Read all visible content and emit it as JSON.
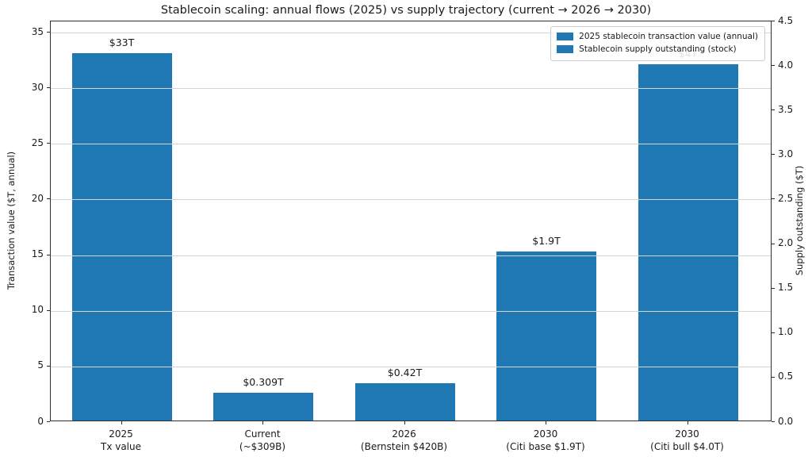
{
  "chart_data": {
    "type": "bar",
    "title": "Stablecoin scaling: annual flows (2025) vs supply trajectory (current → 2026 → 2030)",
    "categories": [
      "2025\nTx value",
      "Current\n(~$309B)",
      "2026\n(Bernstein $420B)",
      "2030\n(Citi base $1.9T)",
      "2030\n(Citi bull $4.0T)"
    ],
    "series": [
      {
        "name": "2025 stablecoin transaction value (annual)",
        "axis": "left",
        "values": [
          33,
          null,
          null,
          null,
          null
        ]
      },
      {
        "name": "Stablecoin supply outstanding (stock)",
        "axis": "right",
        "values": [
          null,
          0.309,
          0.42,
          1.9,
          4.0
        ]
      }
    ],
    "bar_value_labels": [
      "$33T",
      "$0.309T",
      "$0.42T",
      "$1.9T",
      "$4T"
    ],
    "bar_color": "#1f77b4",
    "grid": true,
    "left_axis": {
      "label": "Transaction value ($T, annual)",
      "ticks": [
        "0",
        "5",
        "10",
        "15",
        "20",
        "25",
        "30",
        "35"
      ],
      "range": [
        0,
        36
      ]
    },
    "right_axis": {
      "label": "Supply outstanding ($T)",
      "ticks": [
        "0.0",
        "0.5",
        "1.0",
        "1.5",
        "2.0",
        "2.5",
        "3.0",
        "3.5",
        "4.0",
        "4.5"
      ],
      "range": [
        0,
        4.5
      ]
    },
    "legend": {
      "position": "upper right",
      "entries": [
        {
          "label": "2025 stablecoin transaction value (annual)",
          "color": "#1f77b4"
        },
        {
          "label": "Stablecoin supply outstanding (stock)",
          "color": "#1f77b4"
        }
      ]
    }
  }
}
